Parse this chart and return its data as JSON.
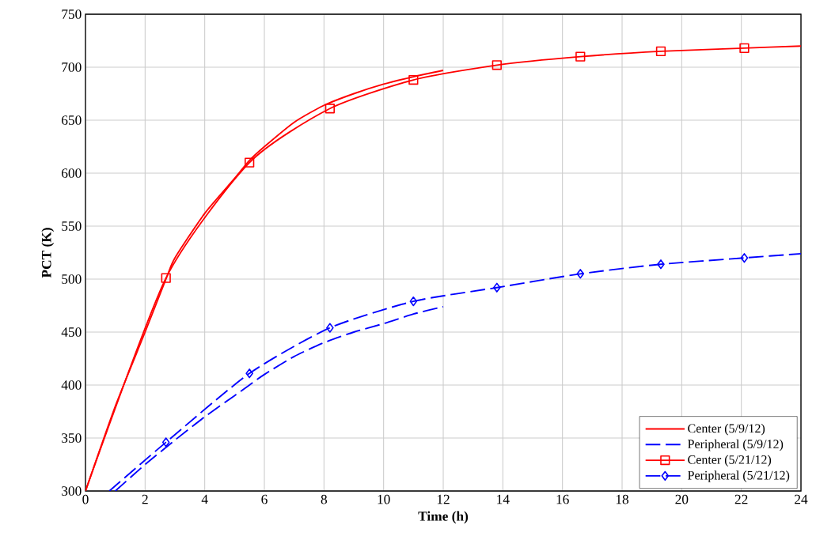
{
  "chart_data": {
    "type": "line",
    "xlabel": "Time  (h)",
    "ylabel": "PCT (K)",
    "xlim": [
      0,
      24
    ],
    "ylim": [
      300,
      750
    ],
    "xticks": [
      0,
      2,
      4,
      6,
      8,
      10,
      12,
      14,
      16,
      18,
      20,
      22,
      24
    ],
    "yticks": [
      300,
      350,
      400,
      450,
      500,
      550,
      600,
      650,
      700,
      750
    ],
    "grid": true,
    "legend": "bottom right",
    "series": [
      {
        "name": "Center (5/9/12)",
        "color": "#ff0000",
        "line_style": "solid",
        "marker": "none",
        "x": [
          0,
          1,
          2,
          2.7,
          3,
          4,
          5,
          5.5,
          6,
          7,
          8,
          9,
          10,
          11,
          12
        ],
        "values": [
          300,
          380,
          450,
          500,
          520,
          562,
          595,
          612,
          625,
          648,
          664,
          675,
          684,
          691,
          697
        ]
      },
      {
        "name": "Peripheral (5/9/12)",
        "color": "#0000ff",
        "line_style": "dashed",
        "marker": "none",
        "x": [
          1,
          2,
          3,
          4,
          5,
          5.5,
          6,
          7,
          8,
          9,
          10,
          11,
          12
        ],
        "values": [
          300,
          325,
          348,
          370,
          390,
          400,
          410,
          427,
          440,
          450,
          458,
          467,
          474
        ]
      },
      {
        "name": "Center (5/21/12)",
        "color": "#ff0000",
        "line_style": "solid",
        "marker": "square",
        "x": [
          0,
          2.7,
          5.5,
          8.2,
          11,
          13.8,
          16.6,
          19.3,
          22.1,
          24
        ],
        "values": [
          300,
          501,
          610,
          661,
          688,
          702,
          710,
          715,
          718,
          720
        ]
      },
      {
        "name": "Peripheral (5/21/12)",
        "color": "#0000ff",
        "line_style": "dashed",
        "marker": "diamond",
        "x": [
          0.8,
          2.7,
          5.5,
          8.2,
          11,
          13.8,
          16.6,
          19.3,
          22.1,
          24
        ],
        "values": [
          300,
          346,
          411,
          454,
          479,
          492,
          505,
          514,
          520,
          524
        ]
      }
    ]
  }
}
